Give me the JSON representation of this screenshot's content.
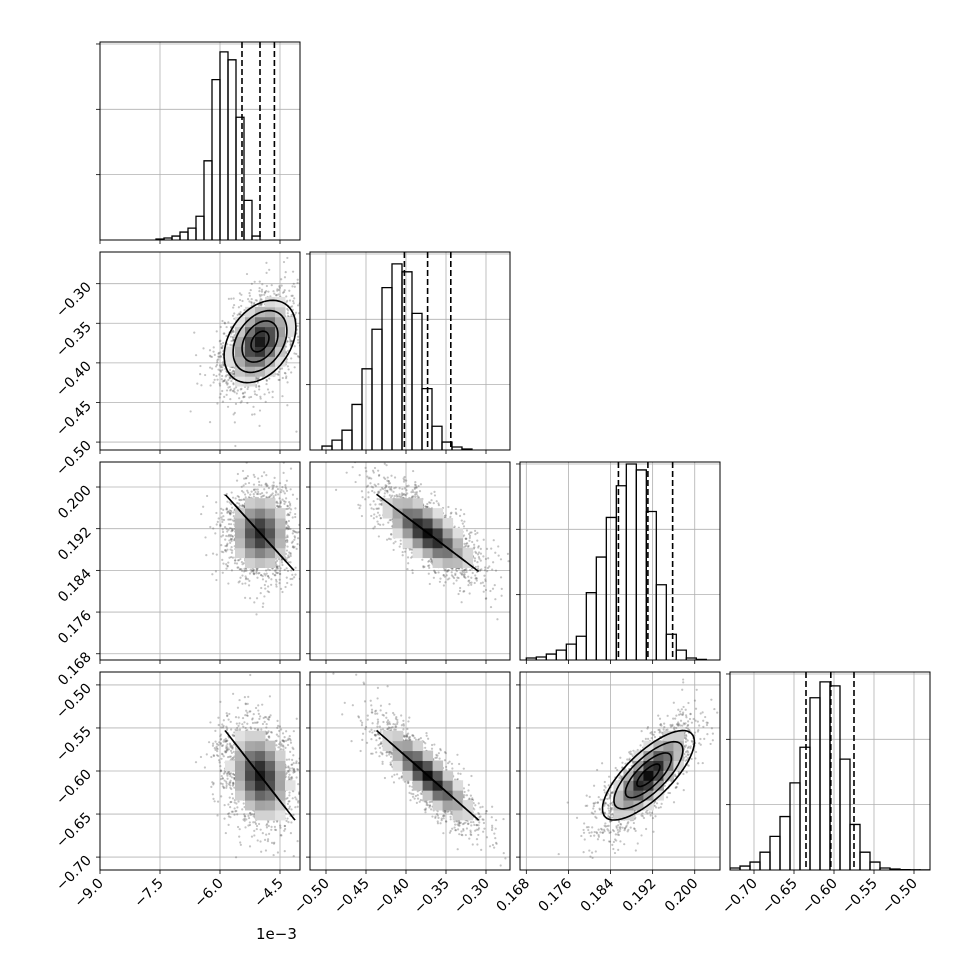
{
  "figure": {
    "type": "corner",
    "offset_text": "1e−3"
  },
  "chart_data": [
    {
      "id": "hist-0",
      "type": "bar",
      "panel": [
        0,
        0
      ],
      "xlim": [
        -9.0,
        -4.0
      ],
      "ylim": [
        0,
        1
      ],
      "xticks": [
        -9.0,
        -7.5,
        -6.0,
        -4.5
      ],
      "quantiles": [
        -5.45,
        -5.0,
        -4.64
      ],
      "x_start": -7.6,
      "bin_width": 0.2,
      "values": [
        0.005,
        0.01,
        0.02,
        0.04,
        0.06,
        0.12,
        0.4,
        0.81,
        0.95,
        0.91,
        0.62,
        0.2,
        0.02
      ]
    },
    {
      "id": "hist-1",
      "type": "bar",
      "panel": [
        1,
        1
      ],
      "xlim": [
        -0.52,
        -0.27
      ],
      "ylim": [
        0,
        1
      ],
      "xticks": [
        -0.5,
        -0.45,
        -0.4,
        -0.35,
        -0.3
      ],
      "quantiles": [
        -0.402,
        -0.373,
        -0.344
      ],
      "x_start": -0.505,
      "bin_width": 0.0125,
      "values": [
        0.02,
        0.05,
        0.1,
        0.23,
        0.41,
        0.61,
        0.82,
        0.94,
        0.9,
        0.69,
        0.31,
        0.12,
        0.04,
        0.015,
        0.005
      ]
    },
    {
      "id": "hist-2",
      "type": "bar",
      "panel": [
        2,
        2
      ],
      "xlim": [
        0.1668,
        0.2048
      ],
      "ylim": [
        0,
        1
      ],
      "xticks": [
        0.168,
        0.176,
        0.184,
        0.192,
        0.2
      ],
      "quantiles": [
        0.1855,
        0.1911,
        0.1958
      ],
      "x_start": 0.168,
      "bin_width": 0.0019,
      "values": [
        0.01,
        0.015,
        0.03,
        0.05,
        0.08,
        0.12,
        0.34,
        0.52,
        0.72,
        0.88,
        0.99,
        0.96,
        0.75,
        0.38,
        0.13,
        0.05,
        0.01,
        0.003
      ]
    },
    {
      "id": "hist-3",
      "type": "bar",
      "panel": [
        3,
        3
      ],
      "xlim": [
        -0.73,
        -0.48
      ],
      "ylim": [
        0,
        1
      ],
      "xticks": [
        -0.7,
        -0.65,
        -0.6,
        -0.55,
        -0.5
      ],
      "quantiles": [
        -0.635,
        -0.604,
        -0.575
      ],
      "x_start": -0.73,
      "bin_width": 0.0125,
      "values": [
        0.01,
        0.02,
        0.04,
        0.09,
        0.17,
        0.27,
        0.44,
        0.62,
        0.87,
        0.95,
        0.93,
        0.56,
        0.23,
        0.09,
        0.04,
        0.01,
        0.005,
        0.002,
        0.001,
        0.0005
      ]
    },
    {
      "id": "scatter-1-0",
      "type": "heatmap",
      "panel": [
        1,
        0
      ],
      "xlim": [
        -9.0,
        -4.0
      ],
      "ylim": [
        -0.51,
        -0.26
      ],
      "yticks": [
        -0.5,
        -0.45,
        -0.4,
        -0.35,
        -0.3
      ],
      "center": [
        -5.0,
        -0.373
      ],
      "sd": [
        0.38,
        0.026
      ],
      "corr": 0.35,
      "tail": [
        -1.1,
        -0.045
      ],
      "levels": [
        0.5,
        1.0,
        1.5,
        2.0
      ],
      "density_peak": 0.9
    },
    {
      "id": "scatter-2-0",
      "type": "heatmap",
      "panel": [
        2,
        0
      ],
      "xlim": [
        -9.0,
        -4.0
      ],
      "ylim": [
        0.1668,
        0.2048
      ],
      "yticks": [
        0.168,
        0.176,
        0.184,
        0.192,
        0.2
      ],
      "center": [
        -5.0,
        0.1912
      ],
      "sd": [
        0.36,
        0.0036
      ],
      "corr": -0.05,
      "levels": [
        0.5,
        1.0,
        1.5,
        2.0
      ],
      "density_peak": 0.85
    },
    {
      "id": "scatter-3-0",
      "type": "heatmap",
      "panel": [
        3,
        0
      ],
      "xlim": [
        -9.0,
        -4.0
      ],
      "ylim": [
        -0.715,
        -0.485
      ],
      "yticks": [
        -0.7,
        -0.65,
        -0.6,
        -0.55,
        -0.5
      ],
      "center": [
        -5.0,
        -0.605
      ],
      "sd": [
        0.37,
        0.026
      ],
      "corr": -0.2,
      "tail": [
        -1.0,
        0.035
      ],
      "levels": [
        0.5,
        1.0,
        1.5,
        2.0
      ],
      "density_peak": 0.9
    },
    {
      "id": "scatter-2-1",
      "type": "heatmap",
      "panel": [
        2,
        1
      ],
      "xlim": [
        -0.52,
        -0.27
      ],
      "ylim": [
        0.1668,
        0.2048
      ],
      "center": [
        -0.373,
        0.1912
      ],
      "sd": [
        0.027,
        0.0037
      ],
      "corr": -0.72,
      "levels": [
        0.5,
        1.0,
        1.5,
        2.0
      ],
      "density_peak": 0.95
    },
    {
      "id": "scatter-3-1",
      "type": "heatmap",
      "panel": [
        3,
        1
      ],
      "xlim": [
        -0.52,
        -0.27
      ],
      "ylim": [
        -0.715,
        -0.485
      ],
      "center": [
        -0.373,
        -0.605
      ],
      "sd": [
        0.027,
        0.026
      ],
      "corr": -0.85,
      "levels": [
        0.5,
        1.0,
        1.5,
        2.0
      ],
      "density_peak": 0.95
    },
    {
      "id": "scatter-3-2",
      "type": "heatmap",
      "panel": [
        3,
        2
      ],
      "xlim": [
        0.1668,
        0.2048
      ],
      "ylim": [
        -0.715,
        -0.485
      ],
      "center": [
        0.1912,
        -0.605
      ],
      "sd": [
        0.0037,
        0.026
      ],
      "corr": 0.75,
      "levels": [
        0.5,
        1.0,
        1.5,
        2.0
      ],
      "density_peak": 0.95
    }
  ]
}
